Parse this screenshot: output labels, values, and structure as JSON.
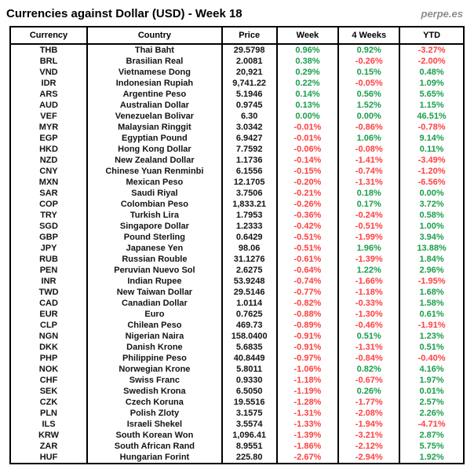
{
  "header": {
    "title": "Currencies against Dollar (USD) - Week 18",
    "brand": "perpe.es"
  },
  "colors": {
    "positive": "#1a9e4b",
    "negative": "#ff4040",
    "text": "#000000",
    "brand_gray": "#8c8c8c",
    "border": "#000000"
  },
  "chart_data": {
    "type": "table",
    "title": "Currencies against Dollar (USD) - Week 18",
    "columns": [
      "Currency",
      "Country",
      "Price",
      "Week",
      "4 Weeks",
      "YTD"
    ],
    "rows": [
      {
        "code": "THB",
        "country": "Thai Baht",
        "price": "29.5798",
        "week": "0.96%",
        "four_weeks": "0.92%",
        "ytd": "-3.27%"
      },
      {
        "code": "BRL",
        "country": "Brasilian Real",
        "price": "2.0081",
        "week": "0.38%",
        "four_weeks": "-0.26%",
        "ytd": "-2.00%"
      },
      {
        "code": "VND",
        "country": "Vietnamese Dong",
        "price": "20,921",
        "week": "0.29%",
        "four_weeks": "0.15%",
        "ytd": "0.48%"
      },
      {
        "code": "IDR",
        "country": "Indonesian Rupiah",
        "price": "9,741.22",
        "week": "0.22%",
        "four_weeks": "-0.05%",
        "ytd": "1.09%"
      },
      {
        "code": "ARS",
        "country": "Argentine Peso",
        "price": "5.1946",
        "week": "0.14%",
        "four_weeks": "0.56%",
        "ytd": "5.65%"
      },
      {
        "code": "AUD",
        "country": "Australian Dollar",
        "price": "0.9745",
        "week": "0.13%",
        "four_weeks": "1.52%",
        "ytd": "1.15%"
      },
      {
        "code": "VEF",
        "country": "Venezuelan Bolivar",
        "price": "6.30",
        "week": "0.00%",
        "four_weeks": "0.00%",
        "ytd": "46.51%"
      },
      {
        "code": "MYR",
        "country": "Malaysian Ringgit",
        "price": "3.0342",
        "week": "-0.01%",
        "four_weeks": "-0.86%",
        "ytd": "-0.78%"
      },
      {
        "code": "EGP",
        "country": "Egyptian Pound",
        "price": "6.9427",
        "week": "-0.01%",
        "four_weeks": "1.06%",
        "ytd": "9.14%"
      },
      {
        "code": "HKD",
        "country": "Hong Kong Dollar",
        "price": "7.7592",
        "week": "-0.06%",
        "four_weeks": "-0.08%",
        "ytd": "0.11%"
      },
      {
        "code": "NZD",
        "country": "New Zealand Dollar",
        "price": "1.1736",
        "week": "-0.14%",
        "four_weeks": "-1.41%",
        "ytd": "-3.49%"
      },
      {
        "code": "CNY",
        "country": "Chinese Yuan Renminbi",
        "price": "6.1556",
        "week": "-0.15%",
        "four_weeks": "-0.74%",
        "ytd": "-1.20%"
      },
      {
        "code": "MXN",
        "country": "Mexican Peso",
        "price": "12.1705",
        "week": "-0.20%",
        "four_weeks": "-1.31%",
        "ytd": "-6.56%"
      },
      {
        "code": "SAR",
        "country": "Saudi Riyal",
        "price": "3.7506",
        "week": "-0.21%",
        "four_weeks": "0.18%",
        "ytd": "0.00%"
      },
      {
        "code": "COP",
        "country": "Colombian Peso",
        "price": "1,833.21",
        "week": "-0.26%",
        "four_weeks": "0.17%",
        "ytd": "3.72%"
      },
      {
        "code": "TRY",
        "country": "Turkish Lira",
        "price": "1.7953",
        "week": "-0.36%",
        "four_weeks": "-0.24%",
        "ytd": "0.58%"
      },
      {
        "code": "SGD",
        "country": "Singapore Dollar",
        "price": "1.2333",
        "week": "-0.42%",
        "four_weeks": "-0.51%",
        "ytd": "1.00%"
      },
      {
        "code": "GBP",
        "country": "Pound Sterling",
        "price": "0.6429",
        "week": "-0.51%",
        "four_weeks": "-1.99%",
        "ytd": "3.94%"
      },
      {
        "code": "JPY",
        "country": "Japanese Yen",
        "price": "98.06",
        "week": "-0.51%",
        "four_weeks": "1.96%",
        "ytd": "13.88%"
      },
      {
        "code": "RUB",
        "country": "Russian Rouble",
        "price": "31.1276",
        "week": "-0.61%",
        "four_weeks": "-1.39%",
        "ytd": "1.84%"
      },
      {
        "code": "PEN",
        "country": "Peruvian Nuevo Sol",
        "price": "2.6275",
        "week": "-0.64%",
        "four_weeks": "1.22%",
        "ytd": "2.96%"
      },
      {
        "code": "INR",
        "country": "Indian Rupee",
        "price": "53.9248",
        "week": "-0.74%",
        "four_weeks": "-1.66%",
        "ytd": "-1.95%"
      },
      {
        "code": "TWD",
        "country": "New Taiwan Dollar",
        "price": "29.5146",
        "week": "-0.77%",
        "four_weeks": "-1.18%",
        "ytd": "1.68%"
      },
      {
        "code": "CAD",
        "country": "Canadian Dollar",
        "price": "1.0114",
        "week": "-0.82%",
        "four_weeks": "-0.33%",
        "ytd": "1.58%"
      },
      {
        "code": "EUR",
        "country": "Euro",
        "price": "0.7625",
        "week": "-0.88%",
        "four_weeks": "-1.30%",
        "ytd": "0.61%"
      },
      {
        "code": "CLP",
        "country": "Chilean Peso",
        "price": "469.73",
        "week": "-0.89%",
        "four_weeks": "-0.46%",
        "ytd": "-1.91%"
      },
      {
        "code": "NGN",
        "country": "Nigerian Naira",
        "price": "158.0400",
        "week": "-0.91%",
        "four_weeks": "0.51%",
        "ytd": "1.23%"
      },
      {
        "code": "DKK",
        "country": "Danish Krone",
        "price": "5.6835",
        "week": "-0.91%",
        "four_weeks": "-1.31%",
        "ytd": "0.51%"
      },
      {
        "code": "PHP",
        "country": "Philippine Peso",
        "price": "40.8449",
        "week": "-0.97%",
        "four_weeks": "-0.84%",
        "ytd": "-0.40%"
      },
      {
        "code": "NOK",
        "country": "Norwegian Krone",
        "price": "5.8011",
        "week": "-1.06%",
        "four_weeks": "0.82%",
        "ytd": "4.16%"
      },
      {
        "code": "CHF",
        "country": "Swiss Franc",
        "price": "0.9330",
        "week": "-1.18%",
        "four_weeks": "-0.67%",
        "ytd": "1.97%"
      },
      {
        "code": "SEK",
        "country": "Swedish Krona",
        "price": "6.5050",
        "week": "-1.19%",
        "four_weeks": "0.26%",
        "ytd": "0.01%"
      },
      {
        "code": "CZK",
        "country": "Czech Koruna",
        "price": "19.5516",
        "week": "-1.28%",
        "four_weeks": "-1.77%",
        "ytd": "2.57%"
      },
      {
        "code": "PLN",
        "country": "Polish Zloty",
        "price": "3.1575",
        "week": "-1.31%",
        "four_weeks": "-2.08%",
        "ytd": "2.26%"
      },
      {
        "code": "ILS",
        "country": "Israeli Shekel",
        "price": "3.5574",
        "week": "-1.33%",
        "four_weeks": "-1.94%",
        "ytd": "-4.71%"
      },
      {
        "code": "KRW",
        "country": "South Korean Won",
        "price": "1,096.41",
        "week": "-1.39%",
        "four_weeks": "-3.21%",
        "ytd": "2.87%"
      },
      {
        "code": "ZAR",
        "country": "South African Rand",
        "price": "8.9551",
        "week": "-1.86%",
        "four_weeks": "-2.12%",
        "ytd": "5.75%"
      },
      {
        "code": "HUF",
        "country": "Hungarian Forint",
        "price": "225.80",
        "week": "-2.67%",
        "four_weeks": "-2.94%",
        "ytd": "1.92%"
      }
    ]
  }
}
